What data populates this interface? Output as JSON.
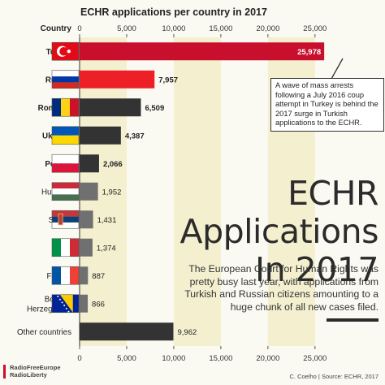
{
  "chart_data": {
    "type": "bar",
    "orientation": "horizontal",
    "title": "ECHR applications per country in 2017",
    "category_header": "Country",
    "categories": [
      "Turkey",
      "Russia",
      "Romania",
      "Ukraine",
      "Poland",
      "Hungary",
      "Serbia",
      "Italy",
      "France",
      "Bosnia-Herzegovina",
      "Other countries"
    ],
    "category_lines": [
      [
        "Turkey"
      ],
      [
        "Russia"
      ],
      [
        "Romania"
      ],
      [
        "Ukraine"
      ],
      [
        "Poland"
      ],
      [
        "Hungary"
      ],
      [
        "Serbia"
      ],
      [
        "Italy"
      ],
      [
        "France"
      ],
      [
        "Bosnia-",
        "Herzegovina"
      ],
      [
        "Other countries"
      ]
    ],
    "bold_categories": [
      "Turkey",
      "Russia",
      "Romania",
      "Ukraine",
      "Poland"
    ],
    "values": [
      25978,
      7957,
      6509,
      4387,
      2066,
      1952,
      1431,
      1374,
      887,
      866,
      9962
    ],
    "value_labels": [
      "25,978",
      "7,957",
      "6,509",
      "4,387",
      "2,066",
      "1,952",
      "1,431",
      "1,374",
      "887",
      "866",
      "9,962"
    ],
    "bar_colors": [
      "#c8102e",
      "#ee2027",
      "#333333",
      "#333333",
      "#333333",
      "#707070",
      "#707070",
      "#707070",
      "#707070",
      "#707070",
      "#333333"
    ],
    "xlim": [
      0,
      27000
    ],
    "x_ticks": [
      0,
      5000,
      10000,
      15000,
      20000,
      25000
    ],
    "x_tick_labels": [
      "0",
      "5,000",
      "10,000",
      "15,000",
      "20,000",
      "25,000"
    ],
    "tick_axes": [
      "top",
      "bottom"
    ],
    "grid": "alternating vertical bands",
    "band_color": "#f3efcf"
  },
  "flags": [
    "turkey-flag-icon",
    "russia-flag-icon",
    "romania-flag-icon",
    "ukraine-flag-icon",
    "poland-flag-icon",
    "hungary-flag-icon",
    "serbia-flag-icon",
    "italy-flag-icon",
    "france-flag-icon",
    "bosnia-flag-icon",
    ""
  ],
  "annotation": "A wave of mass arrests following a July 2016 coup attempt in Turkey is behind the 2017 surge in Turkish applications to the ECHR.",
  "headline": {
    "line1": "ECHR",
    "line2": "Applications",
    "line3": "In 2017"
  },
  "subtitle": "The European Court for Human Rights was pretty busy last year, with applications from Turkish and Russian citizens amounting to a huge chunk of all new cases filed.",
  "logo": {
    "line1": "RadioFreeEurope",
    "line2": "RadioLiberty"
  },
  "credit": "C. Coelho | Source: ECHR, 2017"
}
